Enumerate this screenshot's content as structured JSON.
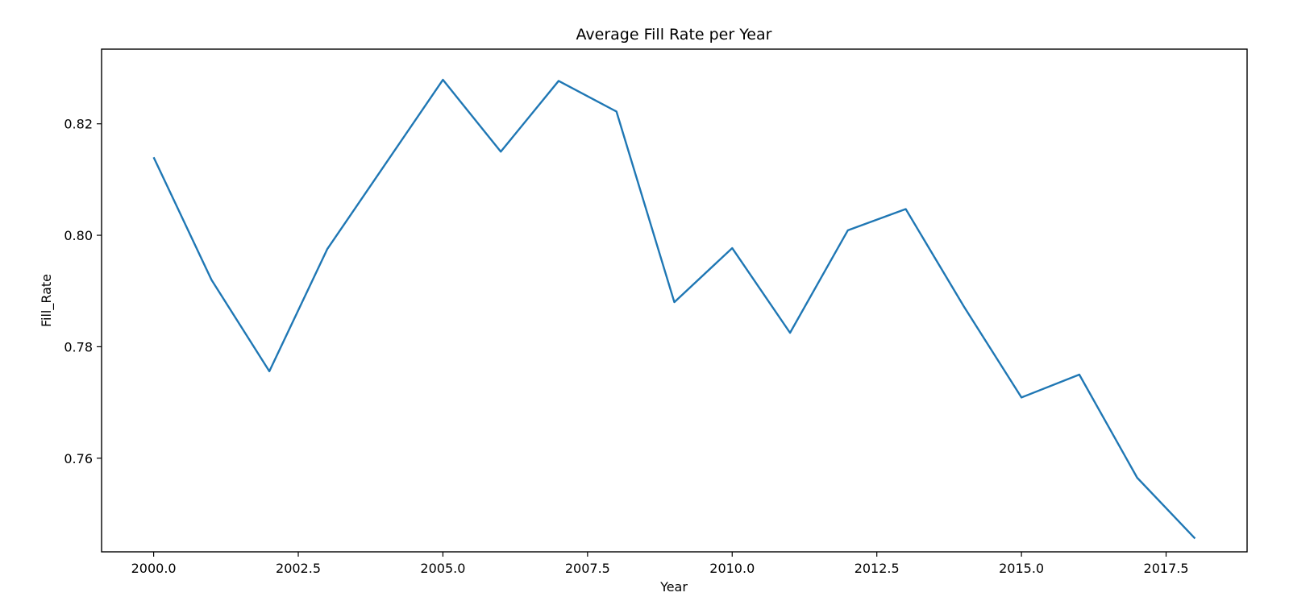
{
  "chart_data": {
    "type": "line",
    "title": "Average Fill Rate per Year",
    "xlabel": "Year",
    "ylabel": "Fill_Rate",
    "xlim": [
      1999.1,
      2018.9
    ],
    "ylim": [
      0.7432,
      0.8334
    ],
    "xticks": [
      2000.0,
      2002.5,
      2005.0,
      2007.5,
      2010.0,
      2012.5,
      2015.0,
      2017.5
    ],
    "xtick_labels": [
      "2000.0",
      "2002.5",
      "2005.0",
      "2007.5",
      "2010.0",
      "2012.5",
      "2015.0",
      "2017.5"
    ],
    "yticks": [
      0.76,
      0.78,
      0.8,
      0.82
    ],
    "ytick_labels": [
      "0.76",
      "0.78",
      "0.80",
      "0.82"
    ],
    "grid": false,
    "legend": "none",
    "series": [
      {
        "color": "#1f77b4",
        "x": [
          2000,
          2001,
          2002,
          2003,
          2004,
          2005,
          2006,
          2007,
          2008,
          2009,
          2010,
          2011,
          2012,
          2013,
          2014,
          2015,
          2016,
          2017,
          2018
        ],
        "values": [
          0.814,
          0.792,
          0.7756,
          0.7975,
          0.8127,
          0.8279,
          0.815,
          0.8277,
          0.8222,
          0.788,
          0.7977,
          0.7825,
          0.8009,
          0.8047,
          0.7873,
          0.7709,
          0.775,
          0.7565,
          0.7456
        ]
      }
    ]
  }
}
